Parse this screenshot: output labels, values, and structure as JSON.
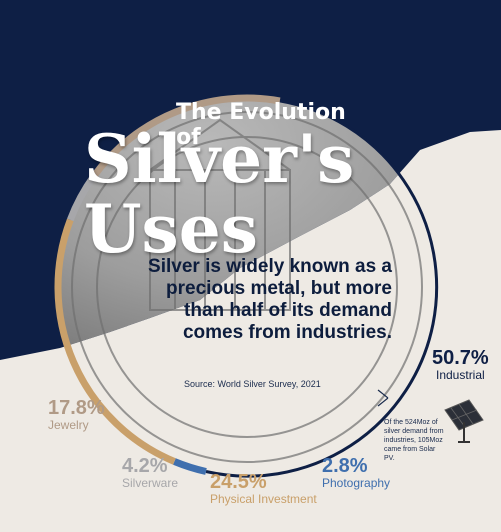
{
  "header": {
    "title_line1": "The Evolution of",
    "title_line2": "Silver's",
    "title_line3": "Uses"
  },
  "intro": "Silver is widely known as a precious metal, but more than half of its demand comes from industries.",
  "source": "Source: World Silver Survey, 2021",
  "note": "Of the 524Moz of silver demand from industries, 105Moz came from Solar PV.",
  "labels": {
    "industrial": {
      "value": "50.7%",
      "name": "Industrial"
    },
    "jewelry": {
      "value": "17.8%",
      "name": "Jewelry"
    },
    "silverware": {
      "value": "4.2%",
      "name": "Silverware"
    },
    "investment": {
      "value": "24.5%",
      "name": "Physical Investment"
    },
    "photography": {
      "value": "2.8%",
      "name": "Photography"
    }
  },
  "colors": {
    "navy": "#0e1f45",
    "paper": "#eeeae4",
    "industrial": "#0e1f45",
    "photography": "#3f6fae",
    "investment": "#c9a06a",
    "silverware": "#a7a7aa",
    "jewelry": "#b09a86"
  },
  "chart_data": {
    "type": "pie",
    "categories": [
      "Industrial",
      "Photography",
      "Physical Investment",
      "Silverware",
      "Jewelry"
    ],
    "values": [
      50.7,
      2.8,
      24.5,
      4.2,
      17.8
    ]
  }
}
